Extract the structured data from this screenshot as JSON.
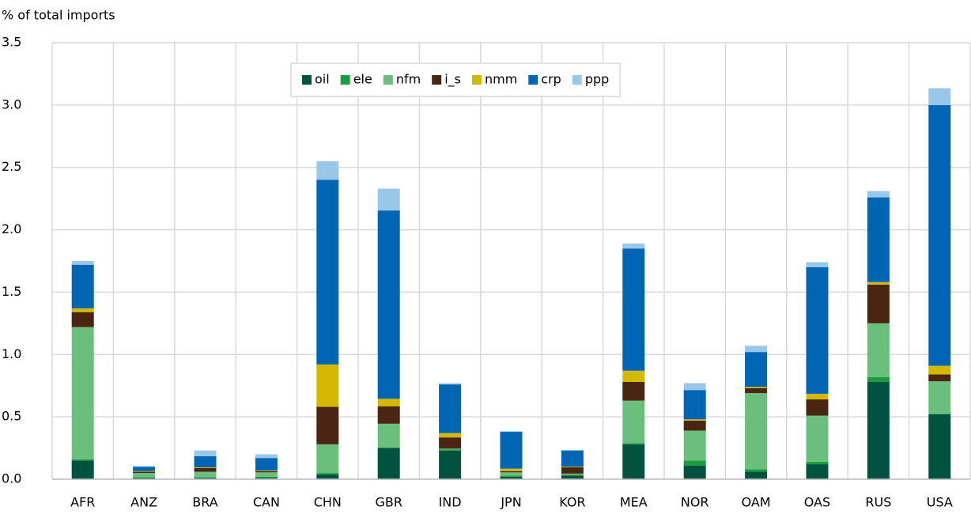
{
  "chart_data": {
    "type": "stacked_bar",
    "y_label": "% of total imports",
    "categories": [
      "AFR",
      "ANZ",
      "BRA",
      "CAN",
      "CHN",
      "GBR",
      "IND",
      "JPN",
      "KOR",
      "MEA",
      "NOR",
      "OAM",
      "OAS",
      "RUS",
      "USA"
    ],
    "series": [
      {
        "name": "oil",
        "color": "#00533f",
        "values": [
          0.15,
          0.01,
          0.01,
          0.01,
          0.04,
          0.25,
          0.23,
          0.02,
          0.03,
          0.28,
          0.11,
          0.06,
          0.12,
          0.78,
          0.52
        ]
      },
      {
        "name": "ele",
        "color": "#1a9c3f",
        "values": [
          0.01,
          0.005,
          0.005,
          0.01,
          0.01,
          0.005,
          0.01,
          0.01,
          0.005,
          0.01,
          0.04,
          0.02,
          0.02,
          0.04,
          0.005
        ]
      },
      {
        "name": "nfm",
        "color": "#6abf7c",
        "values": [
          1.06,
          0.035,
          0.045,
          0.035,
          0.23,
          0.19,
          0.005,
          0.025,
          0.01,
          0.34,
          0.24,
          0.61,
          0.37,
          0.43,
          0.26
        ]
      },
      {
        "name": "i_s",
        "color": "#4a2511",
        "values": [
          0.12,
          0.01,
          0.03,
          0.01,
          0.3,
          0.14,
          0.09,
          0.01,
          0.05,
          0.15,
          0.08,
          0.04,
          0.13,
          0.31,
          0.055
        ]
      },
      {
        "name": "nmm",
        "color": "#d4b800",
        "values": [
          0.03,
          0.005,
          0.005,
          0.005,
          0.34,
          0.06,
          0.035,
          0.02,
          0.005,
          0.09,
          0.01,
          0.01,
          0.045,
          0.02,
          0.07
        ]
      },
      {
        "name": "crp",
        "color": "#0065b3",
        "values": [
          0.35,
          0.035,
          0.09,
          0.1,
          1.48,
          1.51,
          0.39,
          0.295,
          0.13,
          0.98,
          0.235,
          0.28,
          1.015,
          0.68,
          2.09
        ]
      },
      {
        "name": "ppp",
        "color": "#99c7ea",
        "values": [
          0.03,
          0.005,
          0.045,
          0.03,
          0.15,
          0.175,
          0.01,
          0.005,
          0.005,
          0.04,
          0.055,
          0.05,
          0.04,
          0.05,
          0.135
        ]
      }
    ],
    "ylim": [
      0,
      3.5
    ],
    "yticks": [
      {
        "value": 0,
        "label": "0.0"
      },
      0.5,
      {
        "value": 1,
        "label": "1.0"
      },
      1.5,
      {
        "value": 2,
        "label": "2.0"
      },
      2.5,
      {
        "value": 3,
        "label": "3.0"
      },
      3.5
    ],
    "grid": true,
    "legend": "top"
  }
}
